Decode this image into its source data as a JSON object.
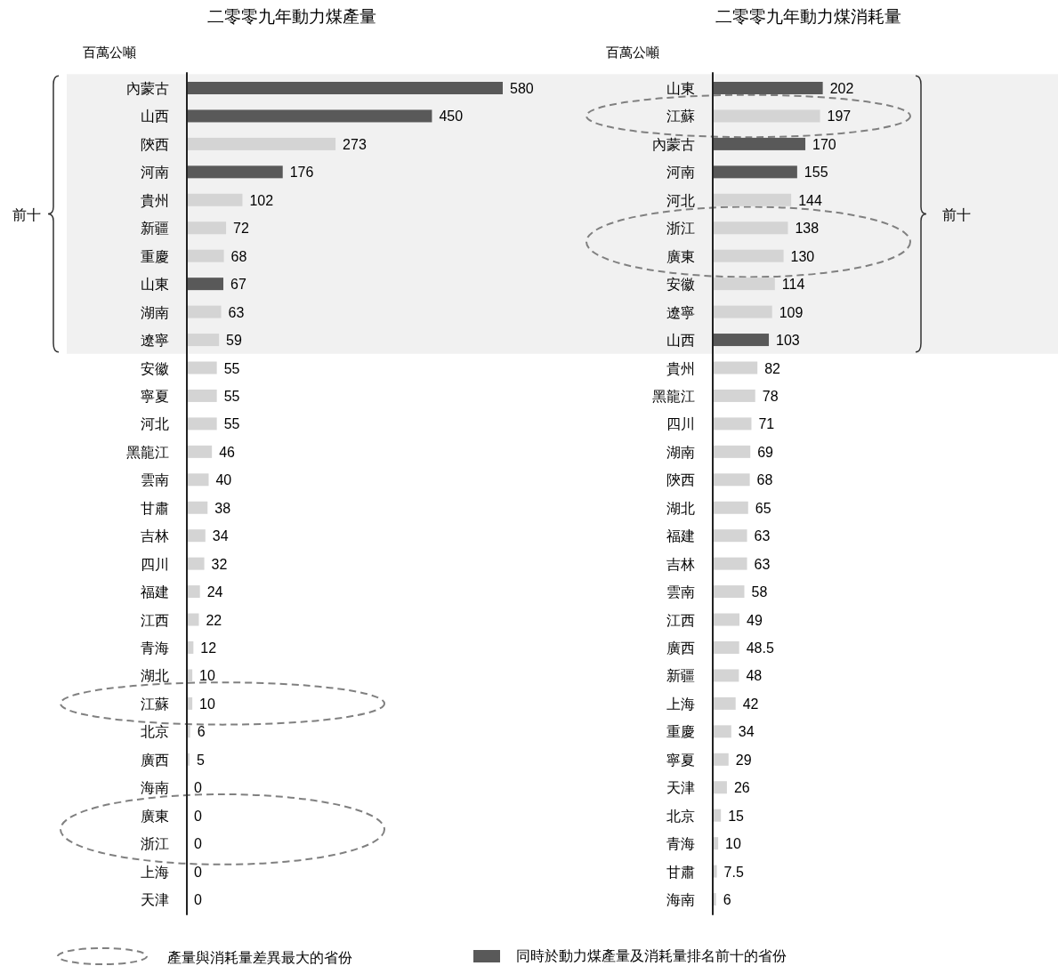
{
  "chart_data": [
    {
      "type": "bar",
      "orientation": "horizontal",
      "title": "二零零九年動力煤產量",
      "xlabel": "百萬公噸",
      "data_labels": true,
      "categories": [
        "內蒙古",
        "山西",
        "陝西",
        "河南",
        "貴州",
        "新疆",
        "重慶",
        "山東",
        "湖南",
        "遼寧",
        "安徽",
        "寧夏",
        "河北",
        "黑龍江",
        "雲南",
        "甘肅",
        "吉林",
        "四川",
        "福建",
        "江西",
        "青海",
        "湖北",
        "江蘇",
        "北京",
        "廣西",
        "海南",
        "廣東",
        "浙江",
        "上海",
        "天津"
      ],
      "values": [
        580,
        450,
        273,
        176,
        102,
        72,
        68,
        67,
        63,
        59,
        55,
        55,
        55,
        46,
        40,
        38,
        34,
        32,
        24,
        22,
        12,
        10,
        10,
        6,
        5,
        0,
        0,
        0,
        0,
        0
      ],
      "colors": [
        "#595959",
        "#595959",
        "#d4d4d4",
        "#595959",
        "#d4d4d4",
        "#d4d4d4",
        "#d4d4d4",
        "#595959",
        "#d4d4d4",
        "#d4d4d4",
        "#d4d4d4",
        "#d4d4d4",
        "#d4d4d4",
        "#d4d4d4",
        "#d4d4d4",
        "#d4d4d4",
        "#d4d4d4",
        "#d4d4d4",
        "#d4d4d4",
        "#d4d4d4",
        "#d4d4d4",
        "#d4d4d4",
        "#d4d4d4",
        "#d4d4d4",
        "#d4d4d4",
        "#d4d4d4",
        "#d4d4d4",
        "#d4d4d4",
        "#d4d4d4",
        "#d4d4d4"
      ],
      "bands": [
        {
          "axis": "y",
          "from": "內蒙古",
          "to": "遼寧",
          "label": "前十",
          "color": "#f1f1f1"
        }
      ],
      "annotations": [
        "產量與消耗量差異最大的省份"
      ]
    },
    {
      "type": "bar",
      "orientation": "horizontal",
      "title": "二零零九年動力煤消耗量",
      "xlabel": "百萬公噸",
      "data_labels": true,
      "categories": [
        "山東",
        "江蘇",
        "內蒙古",
        "河南",
        "河北",
        "浙江",
        "廣東",
        "安徽",
        "遼寧",
        "山西",
        "貴州",
        "黑龍江",
        "四川",
        "湖南",
        "陝西",
        "湖北",
        "福建",
        "吉林",
        "雲南",
        "江西",
        "廣西",
        "新疆",
        "上海",
        "重慶",
        "寧夏",
        "天津",
        "北京",
        "青海",
        "甘肅",
        "海南"
      ],
      "values": [
        202,
        197,
        170,
        155,
        144,
        138,
        130,
        114,
        109,
        103,
        82,
        78,
        71,
        69,
        68,
        65,
        63,
        63,
        58,
        49,
        48.5,
        48,
        42,
        34,
        29,
        26,
        15,
        10,
        7.5,
        6
      ],
      "colors": [
        "#595959",
        "#d4d4d4",
        "#595959",
        "#595959",
        "#d4d4d4",
        "#d4d4d4",
        "#d4d4d4",
        "#d4d4d4",
        "#d4d4d4",
        "#595959",
        "#d4d4d4",
        "#d4d4d4",
        "#d4d4d4",
        "#d4d4d4",
        "#d4d4d4",
        "#d4d4d4",
        "#d4d4d4",
        "#d4d4d4",
        "#d4d4d4",
        "#d4d4d4",
        "#d4d4d4",
        "#d4d4d4",
        "#d4d4d4",
        "#d4d4d4",
        "#d4d4d4",
        "#d4d4d4",
        "#d4d4d4",
        "#d4d4d4",
        "#d4d4d4",
        "#d4d4d4"
      ],
      "bands": [
        {
          "axis": "y",
          "from": "山東",
          "to": "山西",
          "label": "前十",
          "color": "#f1f1f1"
        }
      ],
      "annotations": [
        "同時於動力煤產量及消耗量排名前十的省份"
      ]
    }
  ]
}
